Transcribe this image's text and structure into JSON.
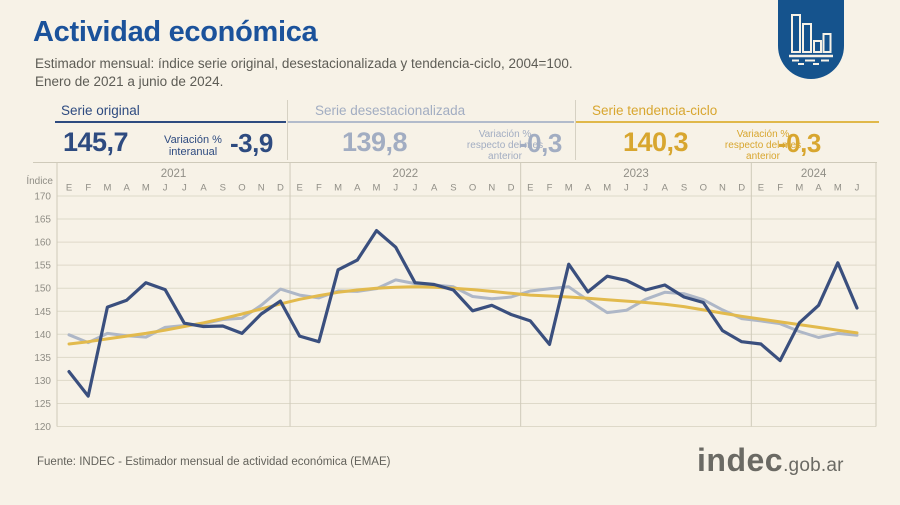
{
  "header": {
    "title": "Actividad económica",
    "subtitle1": "Estimador mensual: índice serie original, desestacionalizada y tendencia-ciclo, 2004=100.",
    "subtitle2": "Enero de 2021 a junio de 2024."
  },
  "icons": {
    "badge": "bar-chart-icon"
  },
  "panels": [
    {
      "name": "Serie original",
      "value": "145,7",
      "var_label": "Variación % interanual",
      "var_value": "-3,9",
      "color": "#2e4b80"
    },
    {
      "name": "Serie desestacionalizada",
      "value": "139,8",
      "var_label": "Variación % respecto del mes anterior",
      "var_value": "-0,3",
      "color": "#a2adc2"
    },
    {
      "name": "Serie tendencia-ciclo",
      "value": "140,3",
      "var_label": "Variación % respecto del mes anterior",
      "var_value": "-0,3",
      "color": "#d8a62f"
    }
  ],
  "colors": {
    "background": "#f7f2e7",
    "title_blue": "#1b529b",
    "badge_blue": "#15538d",
    "grid": "#ded9c9",
    "axis": "#cfcaba",
    "tick_text": "#908e86",
    "line_original": "#3a4f7e",
    "line_desest": "#aeb7c7",
    "line_tendencia": "#e2ba4d"
  },
  "chart_data": {
    "type": "line",
    "ylabel": "Índice",
    "ylim": [
      120,
      170
    ],
    "yticks": [
      170,
      165,
      160,
      155,
      150,
      145,
      140,
      135,
      130,
      125,
      120
    ],
    "grid": true,
    "legend_position": "none",
    "month_letters": [
      "E",
      "F",
      "M",
      "A",
      "M",
      "J",
      "J",
      "A",
      "S",
      "O",
      "N",
      "D"
    ],
    "years": [
      {
        "label": "2021",
        "months": 12
      },
      {
        "label": "2022",
        "months": 12
      },
      {
        "label": "2023",
        "months": 12
      },
      {
        "label": "2024",
        "months": 6
      }
    ],
    "series": [
      {
        "name": "Serie original",
        "color": "#3a4f7e",
        "width": 3.2,
        "values": [
          131.9,
          126.6,
          145.9,
          147.4,
          151.2,
          149.7,
          142.4,
          141.7,
          141.8,
          140.2,
          144.4,
          147.2,
          139.6,
          138.4,
          154.0,
          156.1,
          162.5,
          158.9,
          151.2,
          150.8,
          149.6,
          145.1,
          146.3,
          144.3,
          142.9,
          137.8,
          155.2,
          149.2,
          152.6,
          151.7,
          149.6,
          150.7,
          148.1,
          146.9,
          140.8,
          138.4,
          137.9,
          134.3,
          142.5,
          146.3,
          155.5,
          145.7
        ]
      },
      {
        "name": "Serie desestacionalizada",
        "color": "#aeb7c7",
        "width": 3,
        "values": [
          139.9,
          138.2,
          140.2,
          139.7,
          139.4,
          141.5,
          141.9,
          142.3,
          143.2,
          143.5,
          146.3,
          149.8,
          148.5,
          147.9,
          149.4,
          149.3,
          149.9,
          151.8,
          151.0,
          150.7,
          150.3,
          148.2,
          147.7,
          148.1,
          149.4,
          149.9,
          150.3,
          147.4,
          144.7,
          145.2,
          147.6,
          149.1,
          148.8,
          147.5,
          145.3,
          143.4,
          142.9,
          142.3,
          140.6,
          139.3,
          140.2,
          139.8
        ]
      },
      {
        "name": "Serie tendencia-ciclo",
        "color": "#e2ba4d",
        "width": 3,
        "values": [
          137.9,
          138.4,
          139.0,
          139.6,
          140.2,
          140.9,
          141.7,
          142.5,
          143.4,
          144.4,
          145.5,
          146.6,
          147.6,
          148.4,
          149.1,
          149.6,
          150.0,
          150.2,
          150.3,
          150.2,
          150.0,
          149.7,
          149.3,
          148.9,
          148.5,
          148.3,
          148.1,
          147.8,
          147.5,
          147.2,
          146.9,
          146.5,
          146.0,
          145.3,
          144.6,
          143.9,
          143.3,
          142.7,
          142.1,
          141.5,
          140.9,
          140.3
        ]
      }
    ]
  },
  "footer": {
    "source": "Fuente: INDEC - Estimador mensual de actividad económica (EMAE)",
    "logo": "indec",
    "logo_suffix": ".gob.ar"
  }
}
